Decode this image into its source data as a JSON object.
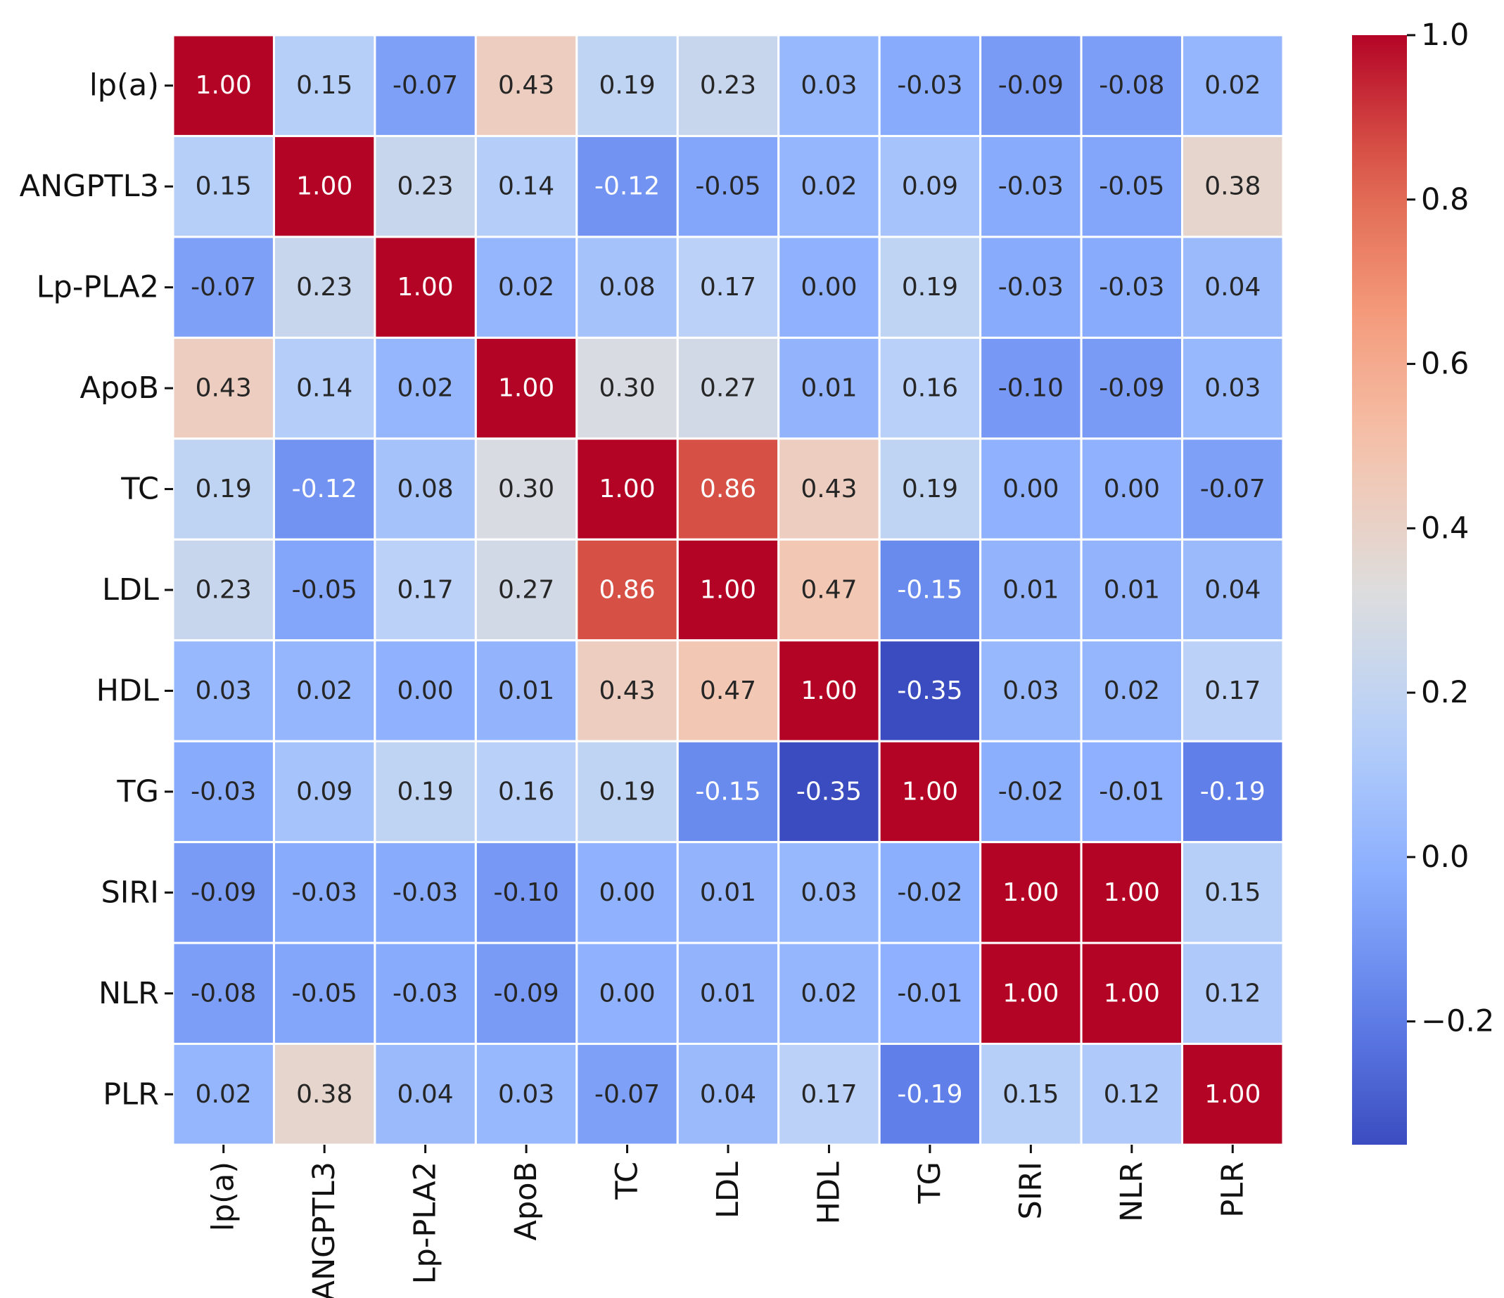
{
  "chart_data": {
    "type": "heatmap",
    "title": "",
    "xlabel": "",
    "ylabel": "",
    "labels": [
      "lp(a)",
      "ANGPTL3",
      "Lp-PLA2",
      "ApoB",
      "TC",
      "LDL",
      "HDL",
      "TG",
      "SIRI",
      "NLR",
      "PLR"
    ],
    "matrix": [
      [
        1.0,
        0.15,
        -0.07,
        0.43,
        0.19,
        0.23,
        0.03,
        -0.03,
        -0.09,
        -0.08,
        0.02
      ],
      [
        0.15,
        1.0,
        0.23,
        0.14,
        -0.12,
        -0.05,
        0.02,
        0.09,
        -0.03,
        -0.05,
        0.38
      ],
      [
        -0.07,
        0.23,
        1.0,
        0.02,
        0.08,
        0.17,
        -0.0,
        0.19,
        -0.03,
        -0.03,
        0.04
      ],
      [
        0.43,
        0.14,
        0.02,
        1.0,
        0.3,
        0.27,
        0.01,
        0.16,
        -0.1,
        -0.09,
        0.03
      ],
      [
        0.19,
        -0.12,
        0.08,
        0.3,
        1.0,
        0.86,
        0.43,
        0.19,
        0.0,
        0.0,
        -0.07
      ],
      [
        0.23,
        -0.05,
        0.17,
        0.27,
        0.86,
        1.0,
        0.47,
        -0.15,
        0.01,
        0.01,
        0.04
      ],
      [
        0.03,
        0.02,
        -0.0,
        0.01,
        0.43,
        0.47,
        1.0,
        -0.35,
        0.03,
        0.02,
        0.17
      ],
      [
        -0.03,
        0.09,
        0.19,
        0.16,
        0.19,
        -0.15,
        -0.35,
        1.0,
        -0.02,
        -0.01,
        -0.19
      ],
      [
        -0.09,
        -0.03,
        -0.03,
        -0.1,
        0.0,
        0.01,
        0.03,
        -0.02,
        1.0,
        1.0,
        0.15
      ],
      [
        -0.08,
        -0.05,
        -0.03,
        -0.09,
        0.0,
        0.01,
        0.02,
        -0.01,
        1.0,
        1.0,
        0.12
      ],
      [
        0.02,
        0.38,
        0.04,
        0.03,
        -0.07,
        0.04,
        0.17,
        -0.19,
        0.15,
        0.12,
        1.0
      ]
    ],
    "value_format": "2 decimals",
    "colormap": "coolwarm",
    "vmin": -0.35,
    "vmax": 1.0,
    "colorbar": {
      "ticks": [
        1.0,
        0.8,
        0.6,
        0.4,
        0.2,
        0.0,
        -0.2
      ],
      "tick_labels": [
        "1.0",
        "0.8",
        "0.6",
        "0.4",
        "0.2",
        "0.0",
        "−0.2"
      ],
      "placement": "right"
    },
    "grid": true
  }
}
